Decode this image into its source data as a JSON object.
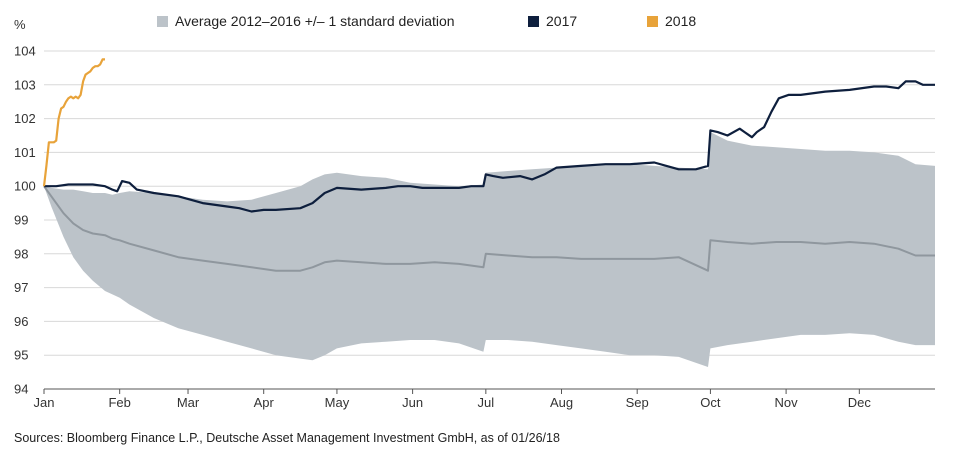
{
  "chart_data": {
    "type": "line",
    "ylabel": "%",
    "ylim": [
      94,
      104
    ],
    "yticks": [
      94,
      95,
      96,
      97,
      98,
      99,
      100,
      101,
      102,
      103,
      104
    ],
    "xlim": [
      0,
      365
    ],
    "xticks": [
      {
        "label": "Jan",
        "day": 0
      },
      {
        "label": "Feb",
        "day": 31
      },
      {
        "label": "Mar",
        "day": 59
      },
      {
        "label": "Apr",
        "day": 90
      },
      {
        "label": "May",
        "day": 120
      },
      {
        "label": "Jun",
        "day": 151
      },
      {
        "label": "Jul",
        "day": 181
      },
      {
        "label": "Aug",
        "day": 212
      },
      {
        "label": "Sep",
        "day": 243
      },
      {
        "label": "Oct",
        "day": 273
      },
      {
        "label": "Nov",
        "day": 304
      },
      {
        "label": "Dec",
        "day": 334
      }
    ],
    "grid": "horizontal",
    "legend": [
      {
        "name": "Average 2012–2016 +/– 1 standard deviation",
        "color": "#bcc3c9",
        "kind": "band"
      },
      {
        "name": "2017",
        "color": "#0e1f3d",
        "kind": "line"
      },
      {
        "name": "2018",
        "color": "#e8a33a",
        "kind": "line"
      }
    ],
    "band": {
      "name": "Average 2012–2016 +/– 1 standard deviation",
      "color": "#bcc3c9",
      "avg_color": "#8f979e",
      "x": [
        0,
        3,
        8,
        12,
        16,
        20,
        25,
        28,
        31,
        35,
        45,
        55,
        65,
        75,
        85,
        95,
        105,
        110,
        115,
        120,
        130,
        140,
        150,
        160,
        170,
        180,
        181,
        190,
        200,
        210,
        220,
        230,
        240,
        250,
        260,
        272,
        273,
        280,
        290,
        300,
        310,
        320,
        330,
        340,
        350,
        357,
        365
      ],
      "upper": [
        100,
        99.95,
        99.9,
        99.9,
        99.85,
        99.8,
        99.8,
        99.75,
        99.8,
        99.85,
        99.8,
        99.7,
        99.6,
        99.55,
        99.6,
        99.8,
        100.0,
        100.2,
        100.35,
        100.4,
        100.3,
        100.25,
        100.1,
        100.05,
        100.0,
        100.05,
        100.4,
        100.45,
        100.5,
        100.55,
        100.6,
        100.65,
        100.65,
        100.6,
        100.55,
        100.5,
        101.6,
        101.35,
        101.2,
        101.15,
        101.1,
        101.05,
        101.05,
        101.0,
        100.9,
        100.65,
        100.6
      ],
      "avg": [
        100,
        99.7,
        99.2,
        98.9,
        98.7,
        98.6,
        98.55,
        98.45,
        98.4,
        98.3,
        98.1,
        97.9,
        97.8,
        97.7,
        97.6,
        97.5,
        97.5,
        97.6,
        97.75,
        97.8,
        97.75,
        97.7,
        97.7,
        97.75,
        97.7,
        97.6,
        98.0,
        97.95,
        97.9,
        97.9,
        97.85,
        97.85,
        97.85,
        97.85,
        97.9,
        97.5,
        98.4,
        98.35,
        98.3,
        98.35,
        98.35,
        98.3,
        98.35,
        98.3,
        98.15,
        97.95,
        97.95
      ],
      "lower": [
        100,
        99.4,
        98.5,
        97.9,
        97.5,
        97.2,
        96.9,
        96.8,
        96.7,
        96.5,
        96.1,
        95.8,
        95.6,
        95.4,
        95.2,
        95.0,
        94.9,
        94.85,
        95.0,
        95.2,
        95.35,
        95.4,
        95.45,
        95.45,
        95.35,
        95.1,
        95.45,
        95.45,
        95.4,
        95.3,
        95.2,
        95.1,
        95.0,
        95.0,
        94.95,
        94.65,
        95.2,
        95.3,
        95.4,
        95.5,
        95.6,
        95.6,
        95.65,
        95.6,
        95.4,
        95.3,
        95.3
      ]
    },
    "series": [
      {
        "name": "2017",
        "color": "#0e1f3d",
        "x": [
          0,
          5,
          10,
          15,
          20,
          25,
          28,
          30,
          32,
          35,
          38,
          45,
          55,
          65,
          75,
          80,
          85,
          90,
          95,
          105,
          110,
          115,
          120,
          130,
          140,
          145,
          150,
          155,
          160,
          170,
          175,
          180,
          181,
          184,
          188,
          195,
          200,
          205,
          210,
          220,
          230,
          240,
          250,
          255,
          260,
          267,
          272,
          273,
          276,
          280,
          285,
          287,
          290,
          292,
          295,
          298,
          301,
          305,
          310,
          320,
          330,
          340,
          345,
          350,
          353,
          355,
          357,
          360,
          365
        ],
        "y": [
          100,
          100,
          100.05,
          100.05,
          100.05,
          100.0,
          99.9,
          99.85,
          100.15,
          100.1,
          99.9,
          99.8,
          99.7,
          99.5,
          99.4,
          99.35,
          99.25,
          99.3,
          99.3,
          99.35,
          99.5,
          99.8,
          99.95,
          99.9,
          99.95,
          100.0,
          100.0,
          99.95,
          99.95,
          99.95,
          100.0,
          100.0,
          100.35,
          100.3,
          100.25,
          100.3,
          100.2,
          100.35,
          100.55,
          100.6,
          100.65,
          100.65,
          100.7,
          100.6,
          100.5,
          100.5,
          100.6,
          101.65,
          101.6,
          101.5,
          101.7,
          101.6,
          101.45,
          101.6,
          101.75,
          102.2,
          102.6,
          102.7,
          102.7,
          102.8,
          102.85,
          102.95,
          102.95,
          102.9,
          103.1,
          103.1,
          103.1,
          103.0,
          103.0
        ]
      },
      {
        "name": "2018",
        "color": "#e8a33a",
        "x": [
          0,
          1,
          2,
          3,
          4,
          5,
          6,
          7,
          8,
          9,
          10,
          11,
          12,
          13,
          14,
          15,
          16,
          17,
          18,
          19,
          20,
          21,
          22,
          23,
          24,
          25
        ],
        "y": [
          100,
          100.6,
          101.3,
          101.3,
          101.3,
          101.35,
          102.0,
          102.3,
          102.35,
          102.5,
          102.6,
          102.65,
          102.6,
          102.65,
          102.6,
          102.7,
          103.1,
          103.3,
          103.35,
          103.4,
          103.5,
          103.55,
          103.55,
          103.6,
          103.75,
          103.75
        ]
      }
    ]
  },
  "footer": {
    "source": "Sources: Bloomberg Finance L.P., Deutsche Asset Management Investment GmbH, as of 01/26/18"
  }
}
